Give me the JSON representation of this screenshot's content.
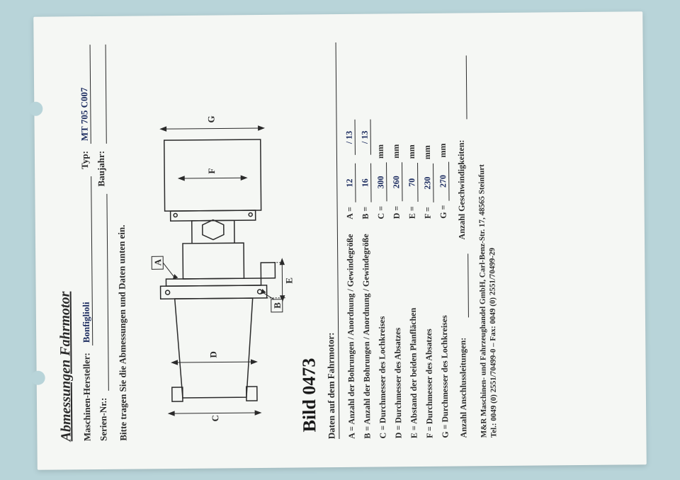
{
  "title": "Abmessungen Fahrmotor",
  "header": {
    "manufacturer_label": "Maschinen-Hersteller:",
    "manufacturer_value": "Bonfiglioli",
    "type_label": "Typ:",
    "type_value": "MT 705 C007",
    "serial_label": "Serien-Nr.:",
    "serial_value": "",
    "year_label": "Baujahr:",
    "year_value": ""
  },
  "instruction": "Bitte tragen Sie die Abmessungen und Daten unten ein.",
  "diagram": {
    "labels": {
      "A": "A",
      "B": "B",
      "C": "C",
      "D": "D",
      "E": "E",
      "F": "F",
      "G": "G"
    },
    "stroke": "#2a2a2a"
  },
  "handwritten_note": "Bild 0473",
  "data_section_title": "Daten auf dem Fahrmotor:",
  "specs": [
    {
      "key": "A",
      "label": "A = Anzahl der Bohrungen / Anordnung / Gewindegröße",
      "value": "12",
      "extra": "/ 13",
      "unit": ""
    },
    {
      "key": "B",
      "label": "B = Anzahl der Bohrungen / Anordnung / Gewindegröße",
      "value": "16",
      "extra": "/ 13",
      "unit": ""
    },
    {
      "key": "C",
      "label": "C = Durchmesser des Lochkreises",
      "value": "300",
      "extra": "",
      "unit": "mm"
    },
    {
      "key": "D",
      "label": "D = Durchmesser des Absatzes",
      "value": "260",
      "extra": "",
      "unit": "mm"
    },
    {
      "key": "E",
      "label": "E = Abstand der beiden Planflächen",
      "value": "70",
      "extra": "",
      "unit": "mm"
    },
    {
      "key": "F",
      "label": "F = Durchmesser des Absatzes",
      "value": "230",
      "extra": "",
      "unit": "mm"
    },
    {
      "key": "G",
      "label": "G = Durchmesser des Lochkreises",
      "value": "270",
      "extra": "",
      "unit": "mm"
    }
  ],
  "bottom": {
    "conn_label": "Anzahl Anschlussleitungen:",
    "conn_value": "",
    "speed_label": "Anzahl Geschwindigkeiten:",
    "speed_value": ""
  },
  "footer": {
    "line1": "M&R Maschinen- und Fahrzeughandel GmbH, Carl-Benz-Str. 17, 48565 Steinfurt",
    "line2": "Tel.: 0049 (0) 2551/70499-0 – Fax: 0049 (0) 2551/70499-29"
  }
}
